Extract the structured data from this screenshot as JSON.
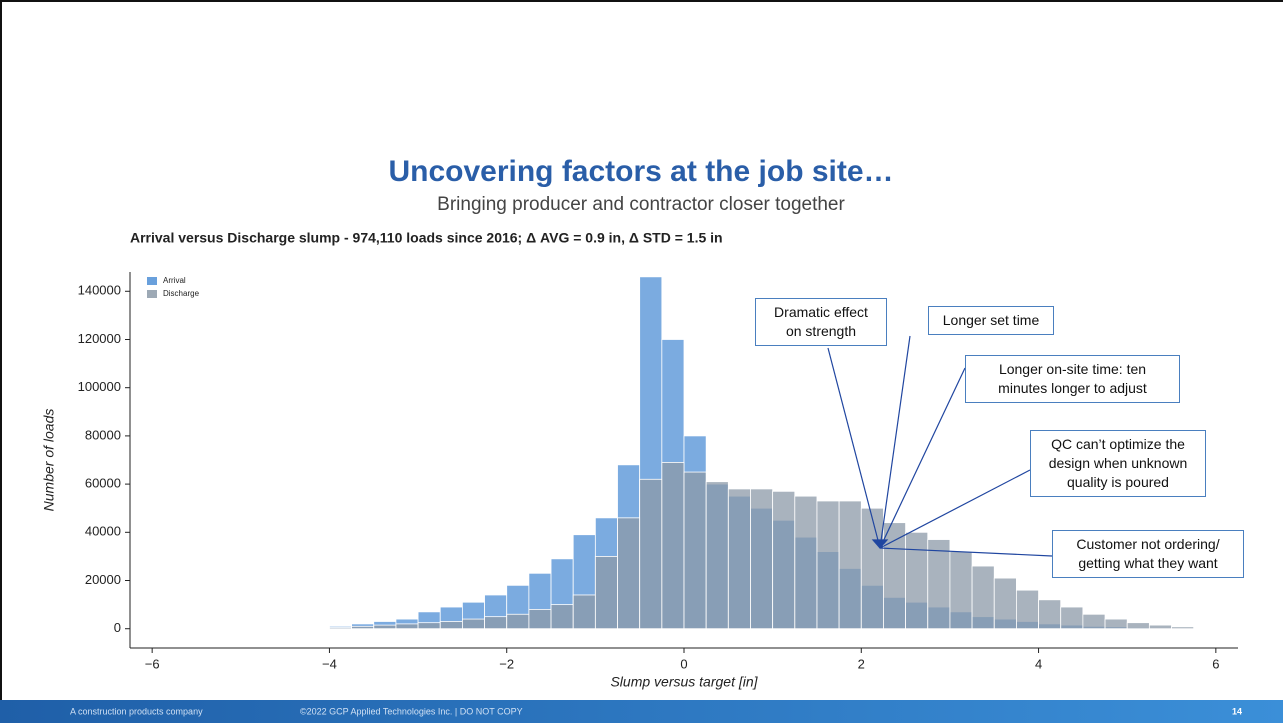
{
  "slide": {
    "title": "Uncovering factors at the job site…",
    "subtitle": "Bringing producer and contractor closer together",
    "footer_left": "A construction products company",
    "footer_center": "©2022 GCP Applied Technologies Inc. | DO NOT COPY",
    "page": "14"
  },
  "chart_data": {
    "type": "histogram",
    "title": "Arrival versus Discharge slump - 974,110 loads since 2016; Δ AVG = 0.9 in, Δ STD = 1.5 in",
    "x_label": "Slump versus target [in]",
    "y_label": "Number of loads",
    "legend": "upper left",
    "bins": [
      -4,
      -3.75,
      -3.5,
      -3.25,
      -3,
      -2.75,
      -2.5,
      -2.25,
      -2,
      -1.75,
      -1.5,
      -1.25,
      -1,
      -0.75,
      -0.5,
      -0.25,
      0,
      0.25,
      0.5,
      0.75,
      1,
      1.25,
      1.5,
      1.75,
      2,
      2.25,
      2.5,
      2.75,
      3,
      3.25,
      3.5,
      3.75,
      4,
      4.25,
      4.5,
      4.75,
      5,
      5.25,
      5.5,
      5.75
    ],
    "series": [
      {
        "name": "Arrival",
        "color": "#4f8fd6",
        "values": [
          1000,
          2000,
          3000,
          4000,
          7000,
          9000,
          11000,
          14000,
          18000,
          23000,
          29000,
          39000,
          46000,
          68000,
          146000,
          120000,
          80000,
          60000,
          55000,
          50000,
          45000,
          38000,
          32000,
          25000,
          18000,
          13000,
          11000,
          9000,
          7000,
          5000,
          4000,
          3000,
          2000,
          1500,
          1000,
          800,
          500,
          300,
          200
        ]
      },
      {
        "name": "Discharge",
        "color": "#8c9aa8",
        "values": [
          500,
          1000,
          1500,
          2000,
          2500,
          3000,
          4000,
          5000,
          6000,
          8000,
          10000,
          14000,
          30000,
          46000,
          62000,
          69000,
          65000,
          61000,
          58000,
          58000,
          57000,
          55000,
          53000,
          53000,
          50000,
          44000,
          40000,
          37000,
          32000,
          26000,
          21000,
          16000,
          12000,
          9000,
          6000,
          4000,
          2500,
          1500,
          800
        ]
      }
    ],
    "xlim": [
      -6.25,
      6.25
    ],
    "xticks": [
      {
        "value": -6,
        "label": "−6"
      },
      {
        "value": -4,
        "label": "−4"
      },
      {
        "value": -2,
        "label": "−2"
      },
      0,
      2,
      4,
      6
    ],
    "ylim": [
      -8000,
      148000
    ],
    "yticks": [
      0,
      20000,
      40000,
      60000,
      80000,
      100000,
      120000,
      140000
    ],
    "annotations": [
      "Dramatic effect\non strength",
      "Longer set time",
      "Longer on-site time: ten\nminutes longer to adjust",
      "QC can’t optimize the\ndesign when unknown\nquality is poured",
      "Customer not ordering/\ngetting what they want"
    ]
  }
}
